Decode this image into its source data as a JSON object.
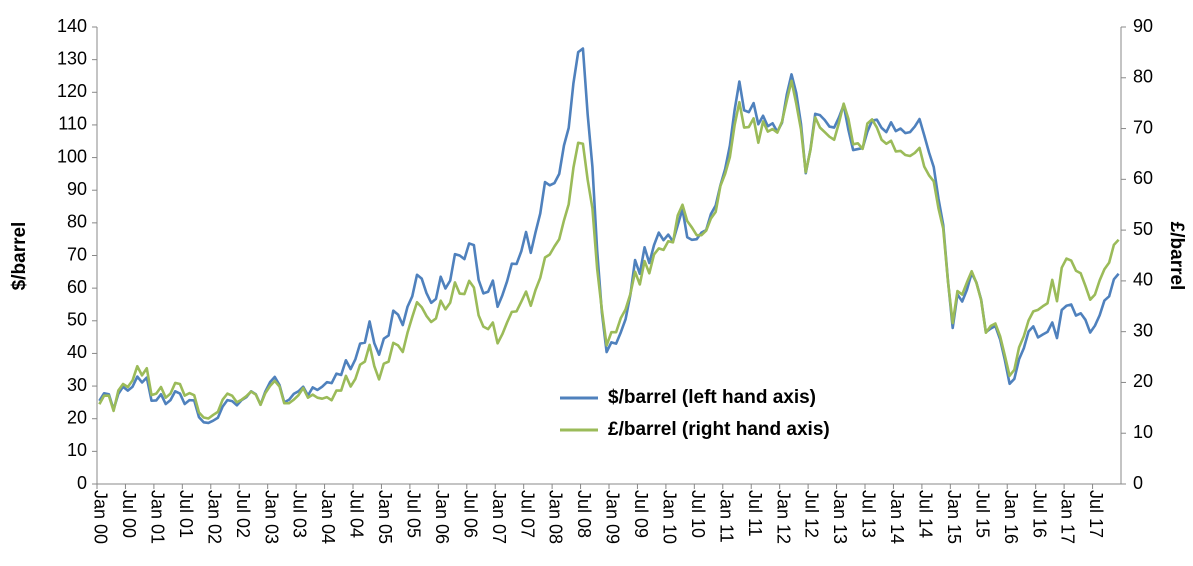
{
  "chart_data": {
    "type": "line",
    "y_label": "$/barrel",
    "y2_label": "£/barrel",
    "ylim": [
      0,
      140
    ],
    "yticks": [
      0,
      10,
      20,
      30,
      40,
      50,
      60,
      70,
      80,
      90,
      100,
      110,
      120,
      130,
      140
    ],
    "y2lim": [
      0,
      90
    ],
    "y2ticks": [
      0,
      10,
      20,
      30,
      40,
      50,
      60,
      70,
      80,
      90
    ],
    "grid": false,
    "legend": "bottom-center",
    "categories": [
      "Jan 00",
      null,
      null,
      null,
      null,
      null,
      "Jul 00",
      null,
      null,
      null,
      null,
      null,
      "Jan 01",
      null,
      null,
      null,
      null,
      null,
      "Jul 01",
      null,
      null,
      null,
      null,
      null,
      "Jan 02",
      null,
      null,
      null,
      null,
      null,
      "Jul 02",
      null,
      null,
      null,
      null,
      null,
      "Jan 03",
      null,
      null,
      null,
      null,
      null,
      "Jul 03",
      null,
      null,
      null,
      null,
      null,
      "Jan 04",
      null,
      null,
      null,
      null,
      null,
      "Jul 04",
      null,
      null,
      null,
      null,
      null,
      "Jan 05",
      null,
      null,
      null,
      null,
      null,
      "Jul 05",
      null,
      null,
      null,
      null,
      null,
      "Jan 06",
      null,
      null,
      null,
      null,
      null,
      "Jul 06",
      null,
      null,
      null,
      null,
      null,
      "Jan 07",
      null,
      null,
      null,
      null,
      null,
      "Jul 07",
      null,
      null,
      null,
      null,
      null,
      "Jan 08",
      null,
      null,
      null,
      null,
      null,
      "Jul 08",
      null,
      null,
      null,
      null,
      null,
      "Jan 09",
      null,
      null,
      null,
      null,
      null,
      "Jul 09",
      null,
      null,
      null,
      null,
      null,
      "Jan 10",
      null,
      null,
      null,
      null,
      null,
      "Jul 10",
      null,
      null,
      null,
      null,
      null,
      "Jan 11",
      null,
      null,
      null,
      null,
      null,
      "Jul 11",
      null,
      null,
      null,
      null,
      null,
      "Jan 12",
      null,
      null,
      null,
      null,
      null,
      "Jul 12",
      null,
      null,
      null,
      null,
      null,
      "Jan 13",
      null,
      null,
      null,
      null,
      null,
      "Jul 13",
      null,
      null,
      null,
      null,
      null,
      "Jan 14",
      null,
      null,
      null,
      null,
      null,
      "Jul 14",
      null,
      null,
      null,
      null,
      null,
      "Jan 15",
      null,
      null,
      null,
      null,
      null,
      "Jul 15",
      null,
      null,
      null,
      null,
      null,
      "Jan 16",
      null,
      null,
      null,
      null,
      null,
      "Jul 16",
      null,
      null,
      null,
      null,
      null,
      "Jan 17",
      null,
      null,
      null,
      null,
      null,
      "Jul 17",
      null,
      null,
      null,
      null,
      null
    ],
    "series": [
      {
        "name": "$/barrel (left hand axis)",
        "color": "#4f81bd",
        "values": [
          25.5,
          27.8,
          27.5,
          22.8,
          27.6,
          29.8,
          28.6,
          29.8,
          32.9,
          31.1,
          32.6,
          25.5,
          25.6,
          27.5,
          24.5,
          25.7,
          28.4,
          27.7,
          24.5,
          25.7,
          25.6,
          20.5,
          18.9,
          18.7,
          19.4,
          20.3,
          23.7,
          25.7,
          25.4,
          24.1,
          25.7,
          26.6,
          28.4,
          27.5,
          24.3,
          28.3,
          31.2,
          32.8,
          30.3,
          25.0,
          25.8,
          27.6,
          28.4,
          29.8,
          27.1,
          29.6,
          28.8,
          29.8,
          31.2,
          30.9,
          33.8,
          33.4,
          37.9,
          35.2,
          38.2,
          43.0,
          43.3,
          49.8,
          43.1,
          39.6,
          44.5,
          45.5,
          53.1,
          51.9,
          48.7,
          54.3,
          57.5,
          64.1,
          62.9,
          58.5,
          55.5,
          56.7,
          63.5,
          59.9,
          62.3,
          70.4,
          70.0,
          68.9,
          73.7,
          73.2,
          62.5,
          58.4,
          58.9,
          62.3,
          54.3,
          57.8,
          62.1,
          67.5,
          67.4,
          71.3,
          77.2,
          70.8,
          77.1,
          82.9,
          92.5,
          91.5,
          92.2,
          95.0,
          103.7,
          109.1,
          122.8,
          132.3,
          133.4,
          113.2,
          97.2,
          71.6,
          52.5,
          40.4,
          43.4,
          43.0,
          46.5,
          50.5,
          57.9,
          68.6,
          64.4,
          72.5,
          67.7,
          73.2,
          77.0,
          74.7,
          76.4,
          74.3,
          79.3,
          84.2,
          75.6,
          74.8,
          75.0,
          77.0,
          77.8,
          82.7,
          85.3,
          91.5,
          96.5,
          103.7,
          114.6,
          123.3,
          114.5,
          113.9,
          116.7,
          110.2,
          112.8,
          109.6,
          110.5,
          107.9,
          110.7,
          119.3,
          125.5,
          119.8,
          110.3,
          95.2,
          102.6,
          113.4,
          113.0,
          111.5,
          109.5,
          109.2,
          112.3,
          116.1,
          108.5,
          102.3,
          102.6,
          102.9,
          107.9,
          111.3,
          111.6,
          109.1,
          107.8,
          110.8,
          108.1,
          108.9,
          107.5,
          107.8,
          109.5,
          111.8,
          106.8,
          101.6,
          97.1,
          87.4,
          79.4,
          62.3,
          47.8,
          58.1,
          55.9,
          59.5,
          64.6,
          61.7,
          56.5,
          46.5,
          47.6,
          48.4,
          44.3,
          38.0,
          30.7,
          32.2,
          38.2,
          41.6,
          46.7,
          48.3,
          44.9,
          45.8,
          46.6,
          49.5,
          44.7,
          53.3,
          54.6,
          55.0,
          51.6,
          52.3,
          50.3,
          46.4,
          48.5,
          51.7,
          56.2,
          57.5,
          62.7,
          64.4
        ]
      },
      {
        "name": "£/barrel (right hand axis)",
        "color": "#9bbb59",
        "axis": "y2",
        "values": [
          15.7,
          17.4,
          17.4,
          14.4,
          18.4,
          19.7,
          19.1,
          20.4,
          23.2,
          21.4,
          22.8,
          17.5,
          17.8,
          19.1,
          17.0,
          17.8,
          19.9,
          19.7,
          17.4,
          17.9,
          17.5,
          14.1,
          13.1,
          12.9,
          13.6,
          14.2,
          16.6,
          17.8,
          17.4,
          16.1,
          16.6,
          17.3,
          18.2,
          17.6,
          15.6,
          17.9,
          19.3,
          20.3,
          19.2,
          15.9,
          15.9,
          16.6,
          17.5,
          18.9,
          17.0,
          17.6,
          17.0,
          16.8,
          17.1,
          16.5,
          18.4,
          18.4,
          21.3,
          19.2,
          20.7,
          23.5,
          24.1,
          27.4,
          23.2,
          20.6,
          23.7,
          24.1,
          27.8,
          27.3,
          26.0,
          29.8,
          32.9,
          35.8,
          34.8,
          33.1,
          31.9,
          32.6,
          36.1,
          34.4,
          35.7,
          39.7,
          37.5,
          37.4,
          40.0,
          38.7,
          33.2,
          31.0,
          30.5,
          31.8,
          27.7,
          29.5,
          31.8,
          33.9,
          34.0,
          35.9,
          37.9,
          35.1,
          38.2,
          40.6,
          44.6,
          45.2,
          46.8,
          48.2,
          51.9,
          55.1,
          62.3,
          67.2,
          67.0,
          59.9,
          54.3,
          42.4,
          34.3,
          27.3,
          29.9,
          29.9,
          32.7,
          34.4,
          37.4,
          41.8,
          39.3,
          43.9,
          41.5,
          45.2,
          46.4,
          46.1,
          47.8,
          47.6,
          52.9,
          55.0,
          51.8,
          50.5,
          49.0,
          49.0,
          49.9,
          52.3,
          53.6,
          58.7,
          61.1,
          64.4,
          70.7,
          75.2,
          70.2,
          70.3,
          72.0,
          67.2,
          71.4,
          69.4,
          69.9,
          69.2,
          71.4,
          75.5,
          79.4,
          74.9,
          69.8,
          61.4,
          65.8,
          72.2,
          70.2,
          69.3,
          68.4,
          67.8,
          71.1,
          74.9,
          71.9,
          66.9,
          67.1,
          66.0,
          71.0,
          71.8,
          70.2,
          67.8,
          67.0,
          67.6,
          65.5,
          65.6,
          64.8,
          64.6,
          65.2,
          66.2,
          62.5,
          60.8,
          59.6,
          54.3,
          50.3,
          39.9,
          31.7,
          38.0,
          37.3,
          39.7,
          41.9,
          39.6,
          36.2,
          29.8,
          31.1,
          31.6,
          29.1,
          25.3,
          21.3,
          22.5,
          26.9,
          29.1,
          32.2,
          34.0,
          34.3,
          35.0,
          35.6,
          40.2,
          36.0,
          42.6,
          44.4,
          44.0,
          42.0,
          41.5,
          39.0,
          36.3,
          37.3,
          40.1,
          42.3,
          43.6,
          47.1,
          48.1
        ]
      }
    ]
  }
}
